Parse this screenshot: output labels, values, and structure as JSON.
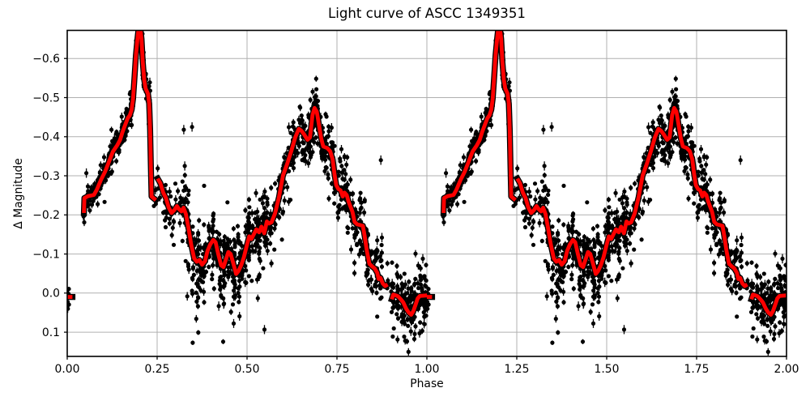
{
  "figure": {
    "title": "Light curve of ASCC 1349351",
    "xlabel": "Phase",
    "ylabel": "Δ Magnitude"
  },
  "chart_data": {
    "type": "scatter",
    "title": "Light curve of ASCC 1349351",
    "xlabel": "Phase",
    "ylabel": "Δ Magnitude",
    "xlim": [
      0,
      2
    ],
    "ylim": [
      -0.672,
      0.162
    ],
    "y_axis_inverted": true,
    "grid": true,
    "grid_color": "#b0b0b0",
    "colors": {
      "scatter": "#000000",
      "median_line": "#ff0000",
      "line_edge": "#000000"
    },
    "xtick_values": [
      0,
      0.25,
      0.5,
      0.75,
      1.0,
      1.25,
      1.5,
      1.75,
      2.0
    ],
    "xtick_labels": [
      "0.00",
      "0.25",
      "0.50",
      "0.75",
      "1.00",
      "1.25",
      "1.50",
      "1.75",
      "2.00"
    ],
    "ytick_values": [
      -0.6,
      -0.5,
      -0.4,
      -0.3,
      -0.2,
      -0.1,
      0.0,
      0.1
    ],
    "ytick_labels": [
      "−0.6",
      "−0.5",
      "−0.4",
      "−0.3",
      "−0.2",
      "−0.1",
      "0.0",
      "0.1"
    ],
    "phase_offsets": [
      0,
      1
    ],
    "median_segments": [
      [
        [
          0.0,
          0.01
        ],
        [
          0.0145,
          0.01
        ]
      ],
      [
        [
          0.0465,
          -0.205
        ],
        [
          0.0478,
          -0.243
        ],
        [
          0.058,
          -0.248
        ],
        [
          0.074,
          -0.251
        ],
        [
          0.082,
          -0.264
        ],
        [
          0.094,
          -0.29
        ],
        [
          0.105,
          -0.31
        ],
        [
          0.117,
          -0.338
        ],
        [
          0.127,
          -0.362
        ],
        [
          0.139,
          -0.378
        ],
        [
          0.147,
          -0.392
        ],
        [
          0.154,
          -0.413
        ],
        [
          0.161,
          -0.43
        ],
        [
          0.168,
          -0.447
        ],
        [
          0.174,
          -0.455
        ],
        [
          0.179,
          -0.469
        ],
        [
          0.183,
          -0.498
        ],
        [
          0.187,
          -0.55
        ],
        [
          0.191,
          -0.608
        ],
        [
          0.1955,
          -0.652
        ],
        [
          0.201,
          -0.697
        ],
        [
          0.2065,
          -0.65
        ],
        [
          0.21,
          -0.592
        ],
        [
          0.214,
          -0.546
        ],
        [
          0.218,
          -0.523
        ],
        [
          0.2245,
          -0.51
        ],
        [
          0.228,
          -0.484
        ],
        [
          0.2305,
          -0.42
        ],
        [
          0.2325,
          -0.33
        ],
        [
          0.2345,
          -0.247
        ],
        [
          0.2465,
          -0.238
        ]
      ],
      [
        [
          0.2515,
          -0.293
        ],
        [
          0.259,
          -0.281
        ],
        [
          0.267,
          -0.257
        ],
        [
          0.2745,
          -0.243
        ],
        [
          0.282,
          -0.219
        ],
        [
          0.29,
          -0.205
        ],
        [
          0.2975,
          -0.212
        ],
        [
          0.305,
          -0.2225
        ],
        [
          0.3115,
          -0.214
        ],
        [
          0.3175,
          -0.209
        ],
        [
          0.3235,
          -0.2185
        ],
        [
          0.33,
          -0.202
        ],
        [
          0.3375,
          -0.164
        ],
        [
          0.345,
          -0.122
        ],
        [
          0.353,
          -0.089
        ],
        [
          0.36,
          -0.0805
        ],
        [
          0.3675,
          -0.0845
        ],
        [
          0.375,
          -0.0725
        ],
        [
          0.383,
          -0.0815
        ],
        [
          0.39,
          -0.108
        ],
        [
          0.398,
          -0.125
        ],
        [
          0.406,
          -0.136
        ],
        [
          0.4125,
          -0.13
        ],
        [
          0.4195,
          -0.101
        ],
        [
          0.428,
          -0.071
        ],
        [
          0.4345,
          -0.0665
        ],
        [
          0.441,
          -0.0855
        ],
        [
          0.448,
          -0.105
        ],
        [
          0.4545,
          -0.1
        ],
        [
          0.462,
          -0.0755
        ],
        [
          0.4695,
          -0.049
        ],
        [
          0.476,
          -0.056
        ],
        [
          0.4835,
          -0.071
        ],
        [
          0.491,
          -0.091
        ],
        [
          0.499,
          -0.121
        ],
        [
          0.506,
          -0.145
        ],
        [
          0.5125,
          -0.1385
        ],
        [
          0.5195,
          -0.152
        ],
        [
          0.526,
          -0.163
        ],
        [
          0.5335,
          -0.1555
        ],
        [
          0.54,
          -0.17
        ],
        [
          0.548,
          -0.153
        ],
        [
          0.555,
          -0.183
        ],
        [
          0.5615,
          -0.178
        ],
        [
          0.568,
          -0.181
        ],
        [
          0.578,
          -0.204
        ],
        [
          0.589,
          -0.246
        ],
        [
          0.6,
          -0.301
        ],
        [
          0.611,
          -0.329
        ],
        [
          0.623,
          -0.363
        ],
        [
          0.634,
          -0.398
        ],
        [
          0.644,
          -0.42
        ],
        [
          0.651,
          -0.4155
        ],
        [
          0.659,
          -0.4055
        ],
        [
          0.668,
          -0.392
        ],
        [
          0.675,
          -0.398
        ],
        [
          0.682,
          -0.455
        ],
        [
          0.6875,
          -0.4735
        ],
        [
          0.694,
          -0.464
        ],
        [
          0.7,
          -0.43
        ],
        [
          0.706,
          -0.396
        ],
        [
          0.712,
          -0.375
        ],
        [
          0.723,
          -0.371
        ],
        [
          0.731,
          -0.363
        ],
        [
          0.738,
          -0.342
        ],
        [
          0.743,
          -0.305
        ],
        [
          0.748,
          -0.276
        ],
        [
          0.754,
          -0.266
        ],
        [
          0.76,
          -0.263
        ],
        [
          0.766,
          -0.247
        ],
        [
          0.771,
          -0.257
        ],
        [
          0.777,
          -0.251
        ],
        [
          0.782,
          -0.235
        ],
        [
          0.788,
          -0.22
        ],
        [
          0.793,
          -0.208
        ],
        [
          0.799,
          -0.182
        ],
        [
          0.806,
          -0.176
        ],
        [
          0.814,
          -0.174
        ],
        [
          0.822,
          -0.172
        ],
        [
          0.827,
          -0.146
        ],
        [
          0.833,
          -0.108
        ],
        [
          0.84,
          -0.075
        ],
        [
          0.848,
          -0.068
        ],
        [
          0.855,
          -0.063
        ],
        [
          0.862,
          -0.052
        ],
        [
          0.866,
          -0.036
        ],
        [
          0.871,
          -0.039
        ],
        [
          0.877,
          -0.025
        ],
        [
          0.884,
          -0.018
        ],
        [
          0.891,
          -0.022
        ]
      ],
      [
        [
          0.9025,
          0.016
        ],
        [
          0.9065,
          0.004
        ],
        [
          0.9125,
          0.0055
        ],
        [
          0.9195,
          0.008
        ],
        [
          0.9275,
          0.016
        ],
        [
          0.9345,
          0.024
        ],
        [
          0.9425,
          0.04
        ],
        [
          0.9495,
          0.05
        ],
        [
          0.9565,
          0.0555
        ],
        [
          0.9625,
          0.0455
        ],
        [
          0.9685,
          0.03
        ],
        [
          0.9745,
          0.0135
        ],
        [
          0.9805,
          0.0075
        ],
        [
          1.0005,
          0.006
        ]
      ]
    ],
    "scatter_spec": {
      "seed": 42,
      "marker_radius": 2.6,
      "errorbar_mag_range": [
        0.004,
        0.012
      ],
      "regions": [
        {
          "from": 0.0005,
          "to": 0.005,
          "cols": 1,
          "pts": [
            6,
            8
          ],
          "sigma": 0.03,
          "tail_p": 0.0,
          "tail": [
            0,
            0
          ]
        },
        {
          "from": 0.046,
          "to": 0.232,
          "cols": 40,
          "pts": [
            4,
            12
          ],
          "sigma": 0.017,
          "tail_p": 0.06,
          "tail": [
            -0.075,
            0.05
          ]
        },
        {
          "from": 0.238,
          "to": 0.262,
          "cols": 4,
          "pts": [
            1,
            3
          ],
          "sigma": 0.03,
          "tail_p": 0.0,
          "tail": [
            0,
            0
          ]
        },
        {
          "from": 0.262,
          "to": 0.316,
          "cols": 9,
          "pts": [
            3,
            8
          ],
          "sigma": 0.035,
          "tail_p": 0.06,
          "tail": [
            -0.05,
            0.1
          ]
        },
        {
          "from": 0.316,
          "to": 0.56,
          "cols": 36,
          "pts": [
            7,
            17
          ],
          "sigma": 0.048,
          "tail_p": 0.11,
          "tail": [
            -0.12,
            0.22
          ]
        },
        {
          "from": 0.56,
          "to": 0.625,
          "cols": 11,
          "pts": [
            4,
            10
          ],
          "sigma": 0.042,
          "tail_p": 0.08,
          "tail": [
            -0.09,
            0.14
          ]
        },
        {
          "from": 0.625,
          "to": 0.755,
          "cols": 22,
          "pts": [
            6,
            14
          ],
          "sigma": 0.034,
          "tail_p": 0.06,
          "tail": [
            -0.05,
            0.13
          ]
        },
        {
          "from": 0.755,
          "to": 0.876,
          "cols": 20,
          "pts": [
            4,
            12
          ],
          "sigma": 0.042,
          "tail_p": 0.07,
          "tail": [
            -0.07,
            0.13
          ]
        },
        {
          "from": 0.878,
          "to": 0.898,
          "cols": 3,
          "pts": [
            1,
            3
          ],
          "sigma": 0.038,
          "tail_p": 0.0,
          "tail": [
            0,
            0
          ]
        },
        {
          "from": 0.9,
          "to": 1.0,
          "cols": 17,
          "pts": [
            6,
            15
          ],
          "sigma": 0.036,
          "tail_p": 0.09,
          "tail": [
            -0.04,
            0.1
          ]
        }
      ],
      "outliers": [
        [
          0.324,
          -0.418
        ],
        [
          0.347,
          -0.425
        ],
        [
          0.862,
          -0.135
        ],
        [
          0.872,
          -0.34
        ],
        [
          0.875,
          -0.142
        ]
      ]
    }
  }
}
